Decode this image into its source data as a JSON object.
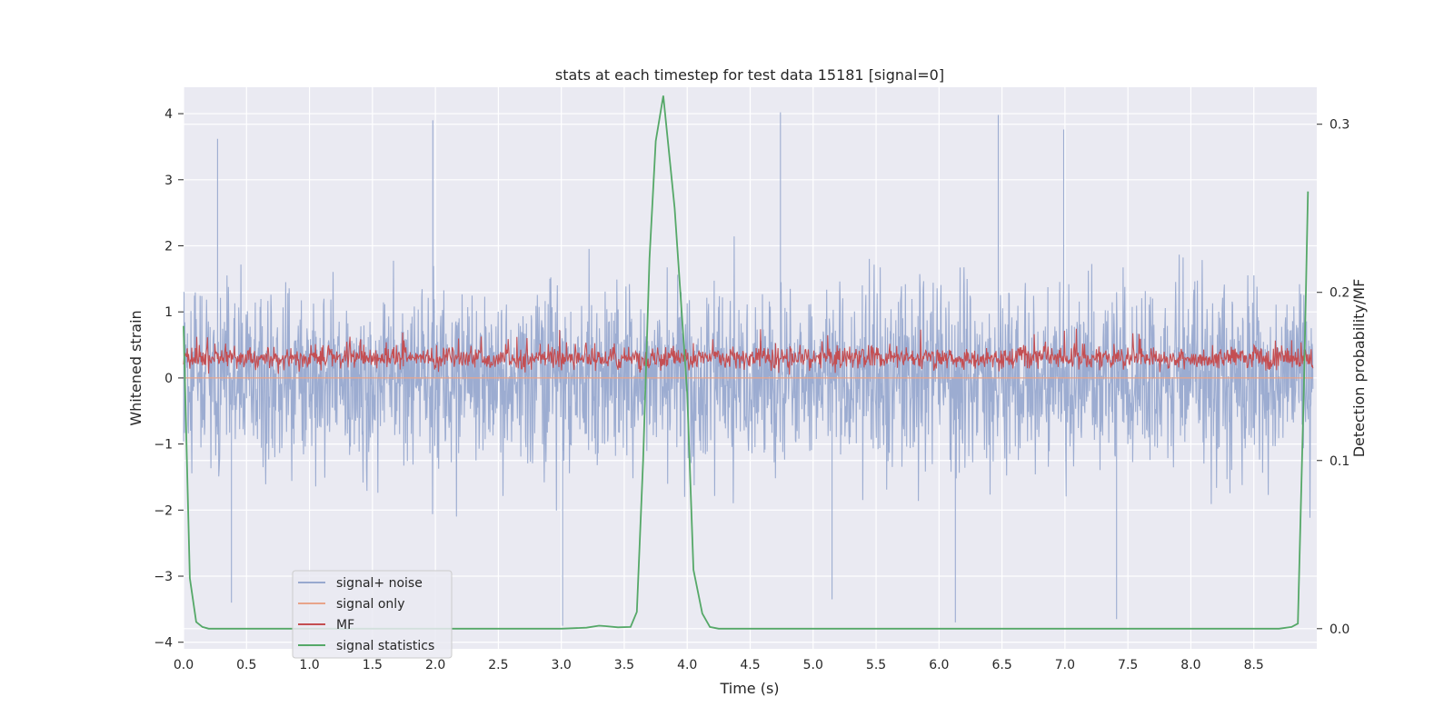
{
  "chart_data": {
    "type": "line",
    "title": "stats at each timestep for test data 15181 [signal=0]",
    "xlabel": "Time (s)",
    "ylabel": "Whitened strain",
    "y2label": "Detection probability/MF",
    "xlim": [
      0.0,
      9.0
    ],
    "ylim": [
      -4.1,
      4.4
    ],
    "y2lim": [
      -0.012,
      0.322
    ],
    "xticks": [
      0.0,
      0.5,
      1.0,
      1.5,
      2.0,
      2.5,
      3.0,
      3.5,
      4.0,
      4.5,
      5.0,
      5.5,
      6.0,
      6.5,
      7.0,
      7.5,
      8.0,
      8.5
    ],
    "xtick_labels": [
      "0.0",
      "0.5",
      "1.0",
      "1.5",
      "2.0",
      "2.5",
      "3.0",
      "3.5",
      "4.0",
      "4.5",
      "5.0",
      "5.5",
      "6.0",
      "6.5",
      "7.0",
      "7.5",
      "8.0",
      "8.5"
    ],
    "yticks": [
      4,
      3,
      2,
      1,
      0,
      -1,
      -2,
      -3,
      -4
    ],
    "ytick_labels": [
      "4",
      "3",
      "2",
      "1",
      "0",
      "−1",
      "−2",
      "−3",
      "−4"
    ],
    "y2ticks": [
      0.3,
      0.2,
      0.1,
      0.0
    ],
    "y2tick_labels": [
      "0.3",
      "0.2",
      "0.1",
      "0.0"
    ],
    "grid": true,
    "legend_position": "lower-left",
    "series": [
      {
        "name": "signal+ noise",
        "axis": "left",
        "color": "#98a9cf",
        "style": "dense noise trace",
        "approx_range": [
          -3.7,
          4.0
        ],
        "peaks": [
          [
            0.27,
            3.62
          ],
          [
            1.98,
            3.9
          ],
          [
            4.74,
            4.02
          ],
          [
            6.47,
            3.98
          ],
          [
            6.99,
            3.76
          ],
          [
            0.38,
            -3.4
          ],
          [
            3.01,
            -3.75
          ],
          [
            5.15,
            -3.35
          ],
          [
            6.13,
            -3.7
          ],
          [
            7.41,
            -3.65
          ]
        ]
      },
      {
        "name": "signal only",
        "axis": "left",
        "color": "#e8a48a",
        "style": "flat at zero (no signal)",
        "x": [
          0.0,
          9.0
        ],
        "y": [
          0.0,
          0.0
        ]
      },
      {
        "name": "MF",
        "axis": "left",
        "color": "#c44e52",
        "style": "noisy band",
        "approx_range": [
          0.02,
          0.98
        ]
      },
      {
        "name": "signal statistics",
        "axis": "right",
        "color": "#55a868",
        "x": [
          0.0,
          0.05,
          0.1,
          0.15,
          0.2,
          0.3,
          0.5,
          1.0,
          1.5,
          2.0,
          2.5,
          3.0,
          3.2,
          3.3,
          3.35,
          3.45,
          3.55,
          3.6,
          3.65,
          3.7,
          3.75,
          3.81,
          3.9,
          4.0,
          4.05,
          4.12,
          4.18,
          4.25,
          4.5,
          5.0,
          6.0,
          7.0,
          8.0,
          8.7,
          8.8,
          8.85,
          8.9,
          8.93
        ],
        "y": [
          0.18,
          0.03,
          0.004,
          0.001,
          0.0,
          0.0,
          0.0,
          0.0,
          0.0,
          0.0,
          0.0,
          0.0,
          0.0006,
          0.0018,
          0.0015,
          0.0008,
          0.001,
          0.01,
          0.1,
          0.22,
          0.29,
          0.317,
          0.25,
          0.14,
          0.035,
          0.009,
          0.001,
          0.0,
          0.0,
          0.0,
          0.0,
          0.0,
          0.0,
          0.0,
          0.001,
          0.003,
          0.15,
          0.26
        ]
      }
    ]
  }
}
